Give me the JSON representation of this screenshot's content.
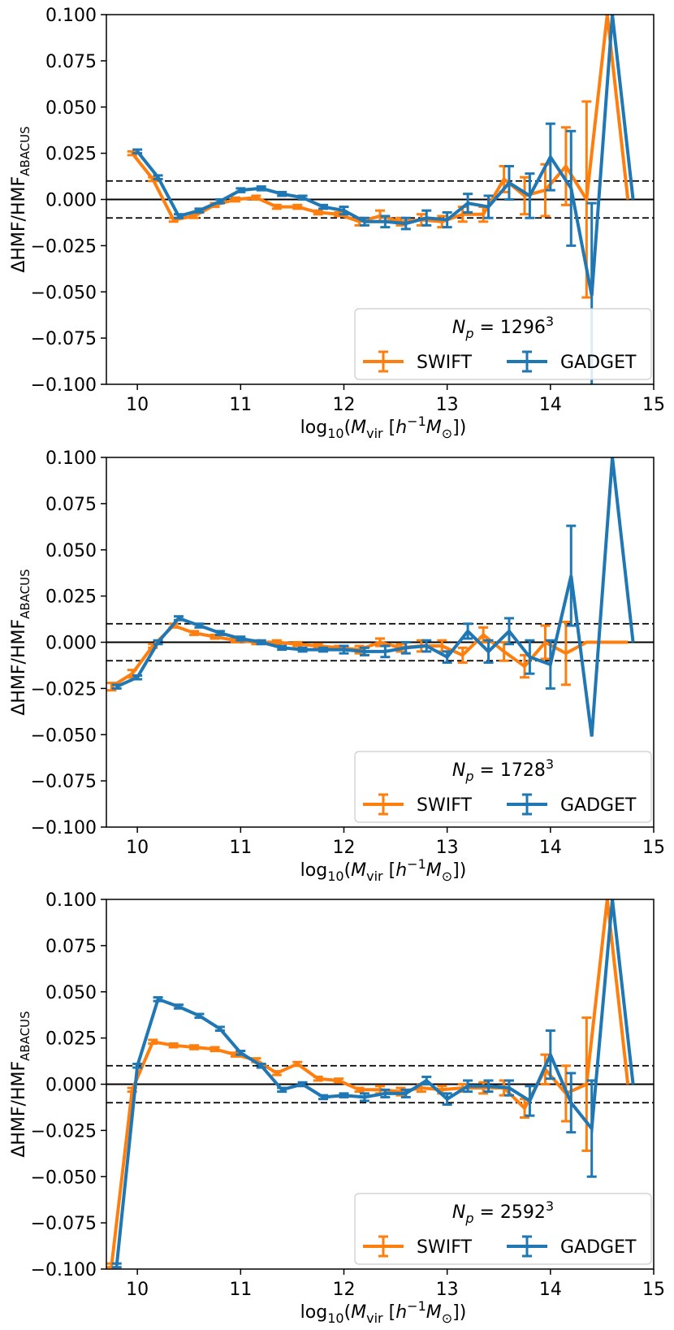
{
  "figure": {
    "title": ""
  },
  "chart_data": [
    {
      "type": "line",
      "title": "",
      "xlabel_pre": "log",
      "xlabel_sub": "10",
      "xlabel_m": "M",
      "xlabel_vir": "vir",
      "xlabel_h": "h",
      "xlabel_exp": "−1",
      "xlabel_msun": "M",
      "xlabel_sun": "⊙",
      "ylabel_main": "ΔHMF/HMF",
      "ylabel_sub": "ABACUS",
      "xlim": [
        9.7,
        15.0
      ],
      "ylim": [
        -0.1,
        0.1
      ],
      "xticks": [
        10,
        11,
        12,
        13,
        14,
        15
      ],
      "xtick_labels": [
        "10",
        "11",
        "12",
        "13",
        "14",
        "15"
      ],
      "yticks": [
        0.1,
        0.075,
        0.05,
        0.025,
        0.0,
        -0.025,
        -0.05,
        -0.075,
        -0.1
      ],
      "ytick_labels": [
        "0.100",
        "0.075",
        "0.050",
        "0.025",
        "0.000",
        "−0.025",
        "−0.050",
        "−0.075",
        "−0.100"
      ],
      "hlines": [
        {
          "y": 0.0,
          "style": "solid"
        },
        {
          "y": 0.01,
          "style": "dashed"
        },
        {
          "y": -0.01,
          "style": "dashed"
        }
      ],
      "legend": {
        "title_pre": "N",
        "title_sub": "p",
        "title_eq": " = 1296",
        "title_exp": "3",
        "placement": "lower-right",
        "entries": [
          "SWIFT",
          "GADGET"
        ]
      },
      "series": [
        {
          "name": "SWIFT",
          "color": "#ff7f0e",
          "x": [
            9.95,
            10.15,
            10.35,
            10.55,
            10.75,
            10.95,
            11.15,
            11.35,
            11.55,
            11.75,
            11.95,
            12.15,
            12.35,
            12.55,
            12.75,
            12.95,
            13.15,
            13.35,
            13.55,
            13.75,
            13.95,
            14.15,
            14.35,
            14.55,
            14.75
          ],
          "y": [
            0.025,
            0.011,
            -0.011,
            -0.009,
            -0.003,
            0.0,
            0.001,
            -0.004,
            -0.004,
            -0.007,
            -0.008,
            -0.012,
            -0.009,
            -0.012,
            -0.011,
            -0.012,
            -0.008,
            -0.008,
            0.011,
            0.002,
            0.005,
            0.018,
            0.0,
            0.1,
            0.0
          ],
          "err": [
            0.001,
            0.001,
            0.001,
            0.001,
            0.001,
            0.001,
            0.001,
            0.001,
            0.001,
            0.001,
            0.001,
            0.002,
            0.003,
            0.002,
            0.003,
            0.003,
            0.004,
            0.004,
            0.007,
            0.01,
            0.014,
            0.021,
            0.053,
            0.0,
            0.0
          ]
        },
        {
          "name": "GADGET",
          "color": "#1f77b4",
          "x": [
            10.0,
            10.2,
            10.4,
            10.6,
            10.8,
            11.0,
            11.2,
            11.4,
            11.6,
            11.8,
            12.0,
            12.2,
            12.4,
            12.6,
            12.8,
            13.0,
            13.2,
            13.4,
            13.6,
            13.8,
            14.0,
            14.2,
            14.4,
            14.6,
            14.8
          ],
          "y": [
            0.026,
            0.012,
            -0.009,
            -0.006,
            -0.001,
            0.005,
            0.006,
            0.003,
            0.001,
            -0.004,
            -0.006,
            -0.012,
            -0.012,
            -0.013,
            -0.01,
            -0.011,
            -0.002,
            -0.004,
            0.009,
            0.002,
            0.023,
            0.006,
            -0.052,
            0.1,
            0.0
          ],
          "err": [
            0.001,
            0.001,
            0.001,
            0.001,
            0.001,
            0.001,
            0.001,
            0.001,
            0.001,
            0.001,
            0.002,
            0.002,
            0.003,
            0.003,
            0.004,
            0.004,
            0.005,
            0.006,
            0.009,
            0.012,
            0.018,
            0.031,
            0.05,
            0.0,
            0.0
          ]
        }
      ]
    },
    {
      "type": "line",
      "title": "",
      "xlabel_pre": "log",
      "xlabel_sub": "10",
      "xlabel_m": "M",
      "xlabel_vir": "vir",
      "xlabel_h": "h",
      "xlabel_exp": "−1",
      "xlabel_msun": "M",
      "xlabel_sun": "⊙",
      "ylabel_main": "ΔHMF/HMF",
      "ylabel_sub": "ABACUS",
      "xlim": [
        9.7,
        15.0
      ],
      "ylim": [
        -0.1,
        0.1
      ],
      "xticks": [
        10,
        11,
        12,
        13,
        14,
        15
      ],
      "xtick_labels": [
        "10",
        "11",
        "12",
        "13",
        "14",
        "15"
      ],
      "yticks": [
        0.1,
        0.075,
        0.05,
        0.025,
        0.0,
        -0.025,
        -0.05,
        -0.075,
        -0.1
      ],
      "ytick_labels": [
        "0.100",
        "0.075",
        "0.050",
        "0.025",
        "0.000",
        "−0.025",
        "−0.050",
        "−0.075",
        "−0.100"
      ],
      "hlines": [
        {
          "y": 0.0,
          "style": "solid"
        },
        {
          "y": 0.01,
          "style": "dashed"
        },
        {
          "y": -0.01,
          "style": "dashed"
        }
      ],
      "legend": {
        "title_pre": "N",
        "title_sub": "p",
        "title_eq": " = 1728",
        "title_exp": "3",
        "placement": "lower-right",
        "entries": [
          "SWIFT",
          "GADGET"
        ]
      },
      "series": [
        {
          "name": "SWIFT",
          "color": "#ff7f0e",
          "x": [
            9.75,
            9.95,
            10.15,
            10.35,
            10.55,
            10.75,
            10.95,
            11.15,
            11.35,
            11.55,
            11.75,
            11.95,
            12.15,
            12.35,
            12.55,
            12.75,
            12.95,
            13.15,
            13.35,
            13.55,
            13.75,
            13.95,
            14.15,
            14.35,
            14.55,
            14.75
          ],
          "y": [
            -0.024,
            -0.017,
            -0.002,
            0.009,
            0.005,
            0.003,
            0.001,
            0.0,
            0.0,
            -0.001,
            -0.002,
            -0.003,
            -0.004,
            0.0,
            -0.003,
            -0.002,
            -0.002,
            -0.007,
            0.004,
            -0.005,
            -0.013,
            0.0,
            -0.006,
            0.0,
            0.0,
            0.0
          ],
          "err": [
            0.002,
            0.002,
            0.001,
            0.001,
            0.001,
            0.001,
            0.001,
            0.001,
            0.001,
            0.001,
            0.001,
            0.001,
            0.002,
            0.002,
            0.002,
            0.003,
            0.003,
            0.004,
            0.004,
            0.005,
            0.006,
            0.009,
            0.017,
            0.0,
            0.0,
            0.0
          ]
        },
        {
          "name": "GADGET",
          "color": "#1f77b4",
          "x": [
            9.8,
            10.0,
            10.2,
            10.4,
            10.6,
            10.8,
            11.0,
            11.2,
            11.4,
            11.6,
            11.8,
            12.0,
            12.2,
            12.4,
            12.6,
            12.8,
            13.0,
            13.2,
            13.4,
            13.6,
            13.8,
            14.0,
            14.2,
            14.4,
            14.6,
            14.8
          ],
          "y": [
            -0.024,
            -0.019,
            0.0,
            0.013,
            0.009,
            0.005,
            0.002,
            0.0,
            -0.003,
            -0.004,
            -0.004,
            -0.004,
            -0.005,
            -0.005,
            -0.003,
            -0.002,
            -0.008,
            0.006,
            -0.005,
            0.006,
            -0.008,
            -0.012,
            0.036,
            -0.051,
            0.1,
            0.0
          ],
          "err": [
            0.001,
            0.001,
            0.001,
            0.001,
            0.001,
            0.001,
            0.001,
            0.001,
            0.001,
            0.001,
            0.001,
            0.002,
            0.002,
            0.003,
            0.003,
            0.003,
            0.003,
            0.004,
            0.006,
            0.007,
            0.009,
            0.013,
            0.027,
            0.0,
            0.0,
            0.0
          ]
        }
      ]
    },
    {
      "type": "line",
      "title": "",
      "xlabel_pre": "log",
      "xlabel_sub": "10",
      "xlabel_m": "M",
      "xlabel_vir": "vir",
      "xlabel_h": "h",
      "xlabel_exp": "−1",
      "xlabel_msun": "M",
      "xlabel_sun": "⊙",
      "ylabel_main": "ΔHMF/HMF",
      "ylabel_sub": "ABACUS",
      "xlim": [
        9.7,
        15.0
      ],
      "ylim": [
        -0.1,
        0.1
      ],
      "xticks": [
        10,
        11,
        12,
        13,
        14,
        15
      ],
      "xtick_labels": [
        "10",
        "11",
        "12",
        "13",
        "14",
        "15"
      ],
      "yticks": [
        0.1,
        0.075,
        0.05,
        0.025,
        0.0,
        -0.025,
        -0.05,
        -0.075,
        -0.1
      ],
      "ytick_labels": [
        "0.100",
        "0.075",
        "0.050",
        "0.025",
        "0.000",
        "−0.025",
        "−0.050",
        "−0.075",
        "−0.100"
      ],
      "hlines": [
        {
          "y": 0.0,
          "style": "solid"
        },
        {
          "y": 0.01,
          "style": "dashed"
        },
        {
          "y": -0.01,
          "style": "dashed"
        }
      ],
      "legend": {
        "title_pre": "N",
        "title_sub": "p",
        "title_eq": " = 2592",
        "title_exp": "3",
        "placement": "lower-right",
        "entries": [
          "SWIFT",
          "GADGET"
        ]
      },
      "series": [
        {
          "name": "SWIFT",
          "color": "#ff7f0e",
          "x": [
            9.75,
            9.95,
            10.15,
            10.35,
            10.55,
            10.75,
            10.95,
            11.15,
            11.35,
            11.55,
            11.75,
            11.95,
            12.15,
            12.35,
            12.55,
            12.75,
            12.95,
            13.15,
            13.35,
            13.55,
            13.75,
            13.95,
            14.15,
            14.35,
            14.55,
            14.75
          ],
          "y": [
            -0.098,
            -0.003,
            0.023,
            0.021,
            0.02,
            0.019,
            0.016,
            0.013,
            0.006,
            0.011,
            0.003,
            0.002,
            -0.003,
            -0.003,
            -0.004,
            -0.002,
            -0.003,
            -0.002,
            -0.002,
            -0.002,
            -0.013,
            0.008,
            -0.005,
            0.0,
            0.1,
            0.0
          ],
          "err": [
            0.001,
            0.001,
            0.001,
            0.001,
            0.001,
            0.001,
            0.001,
            0.001,
            0.001,
            0.001,
            0.001,
            0.001,
            0.001,
            0.002,
            0.002,
            0.002,
            0.002,
            0.002,
            0.003,
            0.004,
            0.005,
            0.008,
            0.015,
            0.036,
            0.0,
            0.0
          ]
        },
        {
          "name": "GADGET",
          "color": "#1f77b4",
          "x": [
            9.8,
            10.0,
            10.2,
            10.4,
            10.6,
            10.8,
            11.0,
            11.2,
            11.4,
            11.6,
            11.8,
            12.0,
            12.2,
            12.4,
            12.6,
            12.8,
            13.0,
            13.2,
            13.4,
            13.6,
            13.8,
            14.0,
            14.2,
            14.4,
            14.6,
            14.8
          ],
          "y": [
            -0.098,
            0.01,
            0.046,
            0.042,
            0.037,
            0.03,
            0.017,
            0.01,
            -0.003,
            0.0,
            -0.007,
            -0.006,
            -0.007,
            -0.005,
            -0.005,
            0.002,
            -0.008,
            -0.001,
            -0.001,
            -0.002,
            -0.009,
            0.016,
            -0.01,
            -0.024,
            0.1,
            0.0
          ],
          "err": [
            0.001,
            0.001,
            0.001,
            0.001,
            0.001,
            0.001,
            0.001,
            0.001,
            0.001,
            0.001,
            0.001,
            0.001,
            0.002,
            0.002,
            0.002,
            0.002,
            0.003,
            0.003,
            0.003,
            0.004,
            0.008,
            0.013,
            0.016,
            0.026,
            0.0,
            0.0
          ]
        }
      ]
    }
  ]
}
